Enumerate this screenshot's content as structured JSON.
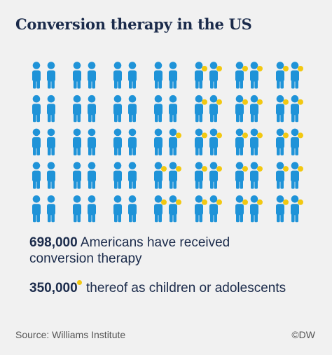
{
  "chart_data": {
    "type": "pictogram",
    "title": "Conversion therapy in the US",
    "series": [
      {
        "name": "Americans have received conversion therapy",
        "value": 698000,
        "value_label": "698,000",
        "color": "#1f93d8"
      },
      {
        "name": "thereof as children or adolescents",
        "value": 350000,
        "value_label": "350,000",
        "color": "#f2c811"
      }
    ],
    "source": "Source: Williams Institute",
    "credit": "©DW"
  }
}
